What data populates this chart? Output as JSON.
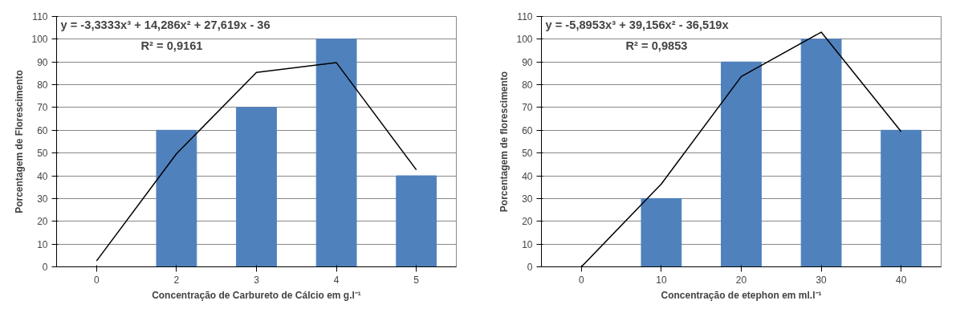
{
  "chart_data": [
    {
      "type": "bar",
      "xlabel": "Concentração de Carbureto de Cálcio em g.l⁻¹",
      "ylabel": "Porcentagem de Florescimento",
      "categories": [
        "0",
        "2",
        "3",
        "4",
        "5"
      ],
      "ylim": [
        0,
        110
      ],
      "yticks": [
        0,
        10,
        20,
        30,
        40,
        50,
        60,
        70,
        80,
        90,
        100,
        110
      ],
      "grid": "y",
      "series": [
        {
          "color": "#4f81bd",
          "values": [
            0,
            60,
            70,
            100,
            40
          ]
        },
        {
          "type": "line",
          "color": "#000000",
          "values": [
            2.6,
            49.7,
            85.4,
            89.7,
            42.6
          ]
        }
      ],
      "annotations": [
        "y = -3,3333x³ + 14,286x² + 27,619x - 36",
        "R² = 0,9161"
      ]
    },
    {
      "type": "bar",
      "xlabel": "Concentração de etephon em ml.l⁻¹",
      "ylabel": "Porcentagem de florescimento",
      "categories": [
        "0",
        "10",
        "20",
        "30",
        "40"
      ],
      "ylim": [
        0,
        110
      ],
      "yticks": [
        0,
        10,
        20,
        30,
        40,
        50,
        60,
        70,
        80,
        90,
        100,
        110
      ],
      "grid": "y",
      "series": [
        {
          "color": "#4f81bd",
          "values": [
            0,
            30,
            90,
            100,
            60
          ]
        },
        {
          "type": "line",
          "color": "#000000",
          "values": [
            0,
            36.4,
            83.6,
            103.1,
            59.4
          ]
        }
      ],
      "annotations": [
        "y = -5,8953x³ + 39,156x² - 36,519x",
        "R² = 0,9853"
      ]
    }
  ]
}
